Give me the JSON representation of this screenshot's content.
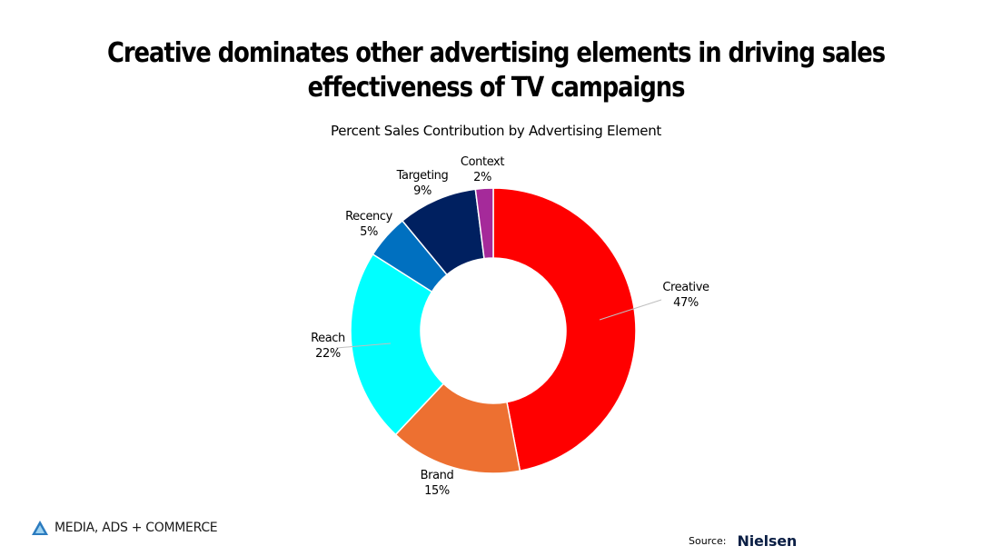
{
  "slide": {
    "title": "Creative dominates other advertising elements in driving sales effectiveness of TV campaigns",
    "subtitle": "Percent Sales Contribution by Advertising Element",
    "logo_text": "MEDIA, ADS + COMMERCE",
    "logo_icon": "triangle-logo-icon",
    "source_label": "Source:",
    "source_brand": "Nielsen"
  },
  "chart_data": {
    "type": "pie",
    "donut": true,
    "title": "Percent Sales Contribution by Advertising Element",
    "categories": [
      "Creative",
      "Brand",
      "Reach",
      "Recency",
      "Targeting",
      "Context"
    ],
    "values": [
      47,
      15,
      22,
      5,
      9,
      2
    ],
    "value_labels": [
      "47%",
      "15%",
      "22%",
      "5%",
      "9%",
      "2%"
    ],
    "unit": "%",
    "colors": [
      "#ff0000",
      "#ed7031",
      "#00ffff",
      "#0070c0",
      "#002060",
      "#a52a9a"
    ],
    "legend": "none"
  }
}
